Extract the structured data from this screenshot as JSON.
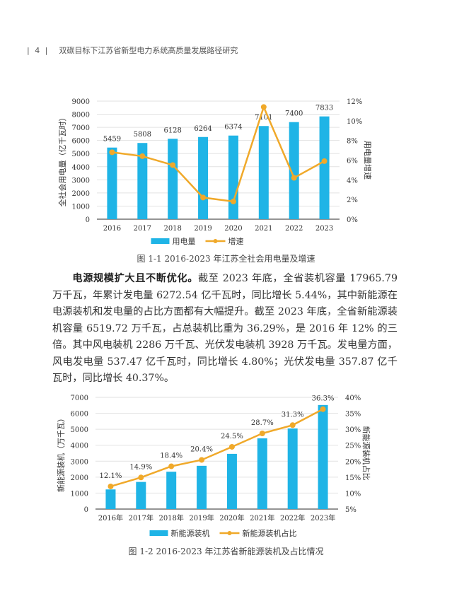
{
  "header": {
    "page_number": "| 4 |",
    "title": "双碳目标下江苏省新型电力系统高质量发展路径研究"
  },
  "paragraph": {
    "lead": "电源规模扩大且不断优化。",
    "body": "截至 2023 年底，全省装机容量 17965.79 万千瓦，年累计发电量 6272.54 亿千瓦时，同比增长 5.44%，其中新能源在电源装机和发电量的占比方面都有大幅提升。截至 2023 年底，全省新能源装机容量 6519.72 万千瓦，占总装机比重为 36.29%，是 2016 年 12% 的三倍。其中风电装机 2286 万千瓦、光伏发电装机 3928 万千瓦。发电量方面，风电发电量 537.47 亿千瓦时，同比增长 4.80%；光伏发电量 357.87 亿千瓦时，同比增长 40.37%。"
  },
  "colors": {
    "bar": "#1fb4e6",
    "line": "#f0a92a"
  },
  "chart_data": [
    {
      "type": "bar+line",
      "title": "图 1-1  2016-2023 年江苏全社会用电量及增速",
      "categories": [
        "2016",
        "2017",
        "2018",
        "2019",
        "2020",
        "2021",
        "2022",
        "2023"
      ],
      "series": [
        {
          "name": "用电量",
          "axis": "left",
          "values": [
            5459,
            5808,
            6128,
            6264,
            6374,
            7101,
            7400,
            7833
          ],
          "labels": [
            "5459",
            "5808",
            "6128",
            "6264",
            "6374",
            "7101",
            "7400",
            "7833"
          ]
        },
        {
          "name": "增速",
          "axis": "right",
          "values": [
            6.8,
            6.4,
            5.5,
            2.2,
            1.8,
            11.4,
            4.2,
            5.9
          ]
        }
      ],
      "ylabel": "全社会用电量（亿千瓦时）",
      "y2label": "用电量增速",
      "ylim": [
        0,
        9000
      ],
      "yticks": [
        "0",
        "1000",
        "2000",
        "3000",
        "4000",
        "5000",
        "6000",
        "7000",
        "8000",
        "9000"
      ],
      "y2lim": [
        0,
        12
      ],
      "y2ticks": [
        "0%",
        "2%",
        "4%",
        "6%",
        "8%",
        "10%",
        "12%"
      ],
      "legend": "bottom"
    },
    {
      "type": "bar+line",
      "title": "图 1-2  2016-2023 年江苏省新能源装机及占比情况",
      "categories": [
        "2016年",
        "2017年",
        "2018年",
        "2019年",
        "2020年",
        "2021年",
        "2022年",
        "2023年"
      ],
      "series": [
        {
          "name": "新能源装机",
          "axis": "left",
          "values": [
            1230,
            1700,
            2340,
            2710,
            3460,
            4430,
            5050,
            6520
          ]
        },
        {
          "name": "新能源装机占比",
          "axis": "right",
          "values": [
            12.1,
            14.9,
            18.4,
            20.4,
            24.5,
            28.7,
            31.3,
            36.3
          ],
          "labels": [
            "12.1%",
            "14.9%",
            "18.4%",
            "20.4%",
            "24.5%",
            "28.7%",
            "31.3%",
            "36.3%"
          ]
        }
      ],
      "ylabel": "新能源装机（万千瓦）",
      "y2label": "新能源装机占比",
      "ylim": [
        0,
        7000
      ],
      "yticks": [
        "0",
        "1000",
        "2000",
        "3000",
        "4000",
        "5000",
        "6000",
        "7000"
      ],
      "y2lim": [
        5,
        40
      ],
      "y2ticks": [
        "5%",
        "10%",
        "15%",
        "20%",
        "25%",
        "30%",
        "35%",
        "40%"
      ],
      "legend": "bottom"
    }
  ]
}
